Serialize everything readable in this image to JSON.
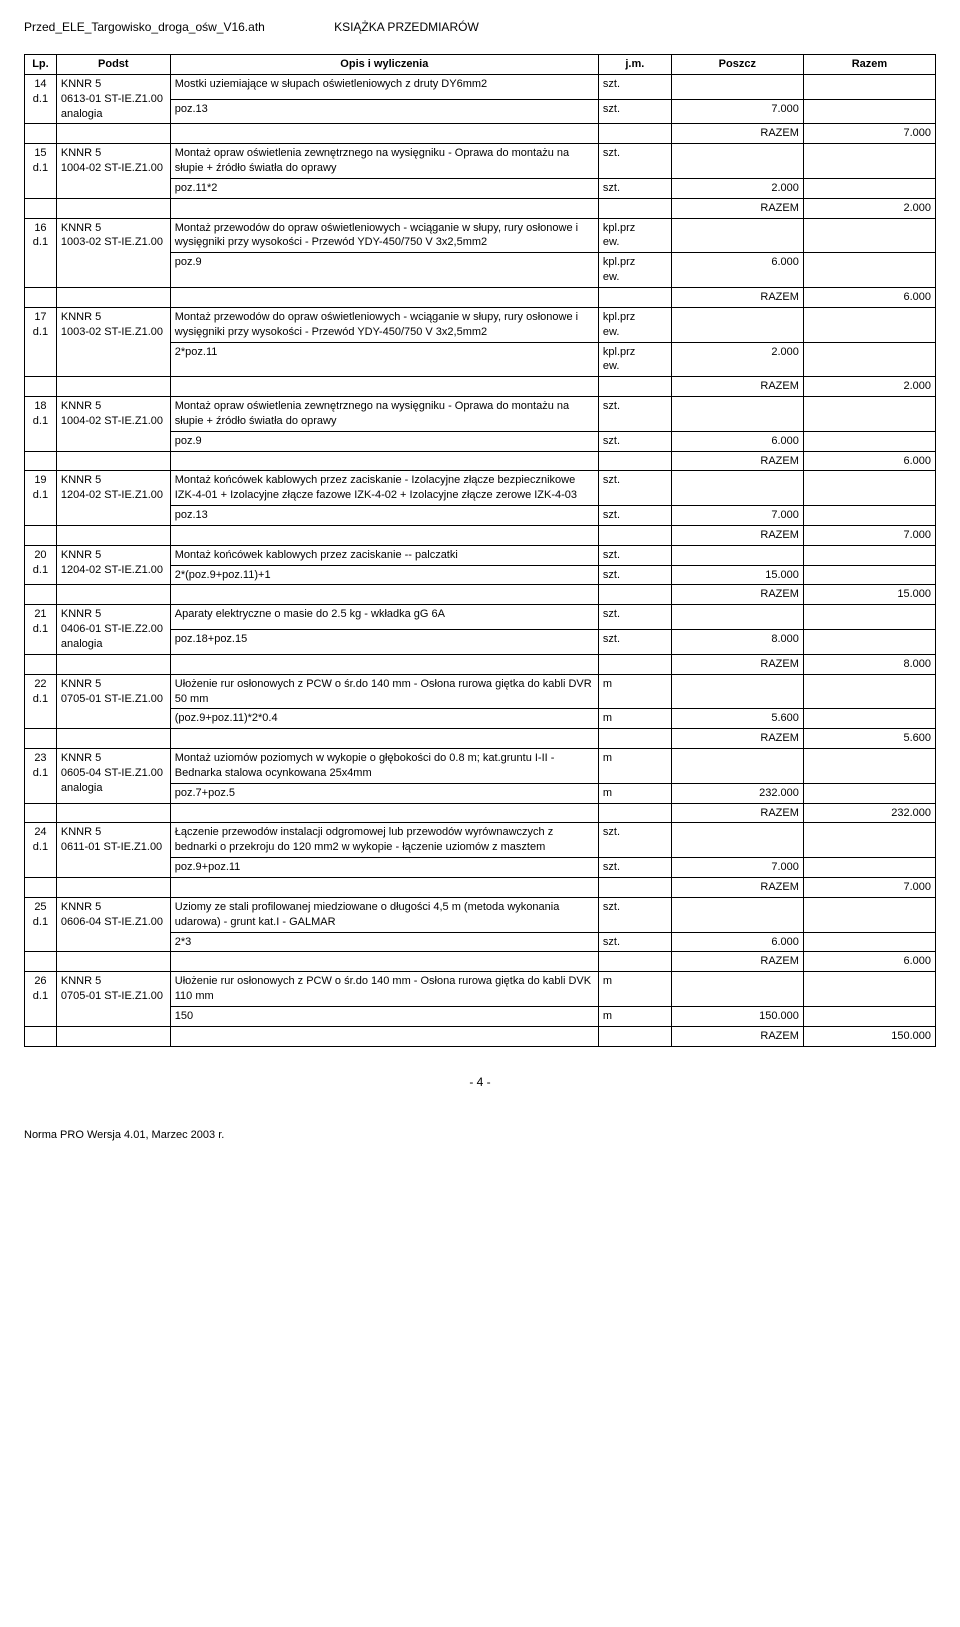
{
  "doc": {
    "header_left": "Przed_ELE_Targowisko_droga_ośw_V16.ath",
    "header_center": "KSIĄŻKA PRZEDMIARÓW",
    "page_num": "- 4 -",
    "footer_soft": "Norma PRO Wersja 4.01, Marzec 2003 r."
  },
  "head": {
    "lp": "Lp.",
    "podst": "Podst",
    "opis": "Opis i wyliczenia",
    "jm": "j.m.",
    "poszcz": "Poszcz",
    "razem": "Razem"
  },
  "labels": {
    "razem": "RAZEM"
  },
  "rows": [
    {
      "lp": "14",
      "sub": "d.1",
      "podst": "KNNR 5\n0613-01 ST-IE.Z1.00\nanalogia",
      "desc": "Mostki uziemiające w słupach oświetleniowych z druty DY6mm2",
      "jm": "szt.",
      "calc": "poz.13",
      "calc_jm": "szt.",
      "calc_val": "7.000",
      "razem": "7.000"
    },
    {
      "lp": "15",
      "sub": "d.1",
      "podst": "KNNR 5\n1004-02 ST-IE.Z1.00",
      "desc": "Montaż opraw oświetlenia zewnętrznego na wysięgniku - Oprawa do montażu na słupie + źródło światła do oprawy",
      "jm": "szt.",
      "calc": "poz.11*2",
      "calc_jm": "szt.",
      "calc_val": "2.000",
      "razem": "2.000"
    },
    {
      "lp": "16",
      "sub": "d.1",
      "podst": "KNNR 5\n1003-02 ST-IE.Z1.00",
      "desc": "Montaż przewodów do opraw oświetleniowych - wciąganie w słupy, rury osłonowe i wysięgniki przy wysokości - Przewód YDY-450/750 V 3x2,5mm2",
      "jm": "kpl.prz\new.",
      "calc": "poz.9",
      "calc_jm": "kpl.prz\new.",
      "calc_val": "6.000",
      "razem": "6.000"
    },
    {
      "lp": "17",
      "sub": "d.1",
      "podst": "KNNR 5\n1003-02 ST-IE.Z1.00",
      "desc": "Montaż przewodów do opraw oświetleniowych - wciąganie w słupy, rury osłonowe i wysięgniki przy wysokości - Przewód YDY-450/750 V 3x2,5mm2",
      "jm": "kpl.prz\new.",
      "calc": "2*poz.11",
      "calc_jm": "kpl.prz\new.",
      "calc_val": "2.000",
      "razem": "2.000"
    },
    {
      "lp": "18",
      "sub": "d.1",
      "podst": "KNNR 5\n1004-02 ST-IE.Z1.00",
      "desc": "Montaż opraw oświetlenia zewnętrznego na wysięgniku - Oprawa do montażu na słupie + źródło światła do oprawy",
      "jm": "szt.",
      "calc": "poz.9",
      "calc_jm": "szt.",
      "calc_val": "6.000",
      "razem": "6.000"
    },
    {
      "lp": "19",
      "sub": "d.1",
      "podst": "KNNR 5\n1204-02 ST-IE.Z1.00",
      "desc": "Montaż końcówek kablowych przez zaciskanie - Izolacyjne złącze bezpiecznikowe IZK-4-01 + Izolacyjne złącze fazowe IZK-4-02 + Izolacyjne złącze zerowe IZK-4-03",
      "jm": "szt.",
      "calc": "poz.13",
      "calc_jm": "szt.",
      "calc_val": "7.000",
      "razem": "7.000"
    },
    {
      "lp": "20",
      "sub": "d.1",
      "podst": "KNNR 5\n1204-02 ST-IE.Z1.00",
      "desc": "Montaż końcówek kablowych przez zaciskanie -- palczatki",
      "jm": "szt.",
      "calc": "2*(poz.9+poz.11)+1",
      "calc_jm": "szt.",
      "calc_val": "15.000",
      "razem": "15.000"
    },
    {
      "lp": "21",
      "sub": "d.1",
      "podst": "KNNR 5\n0406-01 ST-IE.Z2.00\nanalogia",
      "desc": "Aparaty elektryczne o masie do 2.5 kg - wkładka gG 6A",
      "jm": "szt.",
      "calc": "poz.18+poz.15",
      "calc_jm": "szt.",
      "calc_val": "8.000",
      "razem": "8.000"
    },
    {
      "lp": "22",
      "sub": "d.1",
      "podst": "KNNR 5\n0705-01 ST-IE.Z1.00",
      "desc": "Ułożenie rur osłonowych z PCW o śr.do 140 mm - Osłona rurowa giętka do kabli DVR 50 mm",
      "jm": "m",
      "calc": "(poz.9+poz.11)*2*0.4",
      "calc_jm": "m",
      "calc_val": "5.600",
      "razem": "5.600"
    },
    {
      "lp": "23",
      "sub": "d.1",
      "podst": "KNNR 5\n0605-04 ST-IE.Z1.00\nanalogia",
      "desc": "Montaż uziomów poziomych w wykopie o głębokości do 0.8 m; kat.gruntu I-II - Bednarka stalowa ocynkowana 25x4mm",
      "jm": "m",
      "calc": "poz.7+poz.5",
      "calc_jm": "m",
      "calc_val": "232.000",
      "razem": "232.000"
    },
    {
      "lp": "24",
      "sub": "d.1",
      "podst": "KNNR 5\n0611-01 ST-IE.Z1.00",
      "desc": "Łączenie przewodów instalacji odgromowej lub przewodów wyrównawczych z bednarki o przekroju do 120 mm2 w wykopie - łączenie uziomów z masztem",
      "jm": "szt.",
      "calc": "poz.9+poz.11",
      "calc_jm": "szt.",
      "calc_val": "7.000",
      "razem": "7.000"
    },
    {
      "lp": "25",
      "sub": "d.1",
      "podst": "KNNR 5\n0606-04 ST-IE.Z1.00",
      "desc": "Uziomy ze stali profilowanej miedziowane o długości 4,5 m (metoda wykonania udarowa) - grunt kat.I - GALMAR",
      "jm": "szt.",
      "calc": "2*3",
      "calc_jm": "szt.",
      "calc_val": "6.000",
      "razem": "6.000"
    },
    {
      "lp": "26",
      "sub": "d.1",
      "podst": "KNNR 5\n0705-01 ST-IE.Z1.00",
      "desc": "Ułożenie rur osłonowych z PCW o śr.do 140 mm - Osłona rurowa giętka do kabli DVK 110 mm",
      "jm": "m",
      "calc": "150",
      "calc_jm": "m",
      "calc_val": "150.000",
      "razem": "150.000"
    }
  ]
}
